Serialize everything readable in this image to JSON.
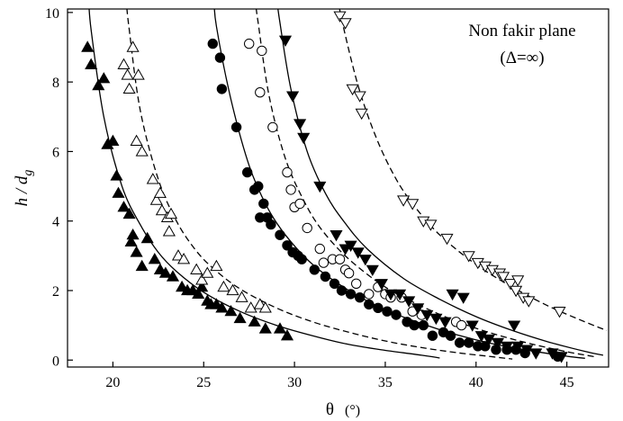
{
  "chart_data": {
    "type": "scatter",
    "title": "",
    "xlabel": "θ",
    "xlabel_unit": "(°)",
    "ylabel_main": "h / d",
    "ylabel_sub": "g",
    "xlim": [
      17.5,
      47.3
    ],
    "ylim": [
      -0.2,
      10.1
    ],
    "xticks": [
      20,
      25,
      30,
      35,
      40,
      45
    ],
    "yticks": [
      0,
      2,
      4,
      6,
      8,
      10
    ],
    "grid": false,
    "annotation": [
      "Non fakir plane",
      "(Δ=∞)"
    ],
    "series": [
      {
        "marker": "filled-triangle-up",
        "points": [
          [
            18.6,
            9.0
          ],
          [
            18.8,
            8.5
          ],
          [
            19.2,
            7.9
          ],
          [
            19.5,
            8.1
          ],
          [
            19.7,
            6.2
          ],
          [
            20.0,
            6.3
          ],
          [
            20.2,
            5.3
          ],
          [
            20.3,
            4.8
          ],
          [
            20.6,
            4.4
          ],
          [
            20.9,
            4.2
          ],
          [
            21.1,
            3.6
          ],
          [
            21.0,
            3.4
          ],
          [
            21.3,
            3.1
          ],
          [
            21.6,
            2.7
          ],
          [
            21.9,
            3.5
          ],
          [
            22.3,
            2.9
          ],
          [
            22.6,
            2.6
          ],
          [
            22.9,
            2.5
          ],
          [
            23.3,
            2.4
          ],
          [
            23.8,
            2.1
          ],
          [
            24.1,
            2.0
          ],
          [
            24.4,
            2.0
          ],
          [
            24.7,
            1.9
          ],
          [
            24.9,
            2.1
          ],
          [
            25.2,
            1.7
          ],
          [
            25.4,
            1.6
          ],
          [
            25.7,
            1.6
          ],
          [
            26.0,
            1.5
          ],
          [
            26.5,
            1.4
          ],
          [
            27.0,
            1.2
          ],
          [
            27.8,
            1.1
          ],
          [
            28.4,
            0.9
          ],
          [
            29.2,
            0.9
          ],
          [
            29.6,
            0.7
          ]
        ]
      },
      {
        "marker": "open-triangle-up",
        "points": [
          [
            20.6,
            8.5
          ],
          [
            20.8,
            8.2
          ],
          [
            20.9,
            7.8
          ],
          [
            21.1,
            9.0
          ],
          [
            21.4,
            8.2
          ],
          [
            21.3,
            6.3
          ],
          [
            21.6,
            6.0
          ],
          [
            22.2,
            5.2
          ],
          [
            22.4,
            4.6
          ],
          [
            22.6,
            4.8
          ],
          [
            22.7,
            4.3
          ],
          [
            23.0,
            4.1
          ],
          [
            23.2,
            4.2
          ],
          [
            23.1,
            3.7
          ],
          [
            23.6,
            3.0
          ],
          [
            23.9,
            2.9
          ],
          [
            24.6,
            2.6
          ],
          [
            24.9,
            2.3
          ],
          [
            25.2,
            2.5
          ],
          [
            25.7,
            2.7
          ],
          [
            26.1,
            2.1
          ],
          [
            26.6,
            2.0
          ],
          [
            27.1,
            1.8
          ],
          [
            27.6,
            1.5
          ],
          [
            28.1,
            1.6
          ],
          [
            28.4,
            1.5
          ]
        ]
      },
      {
        "marker": "filled-circle",
        "points": [
          [
            25.5,
            9.1
          ],
          [
            25.9,
            8.7
          ],
          [
            26.0,
            7.8
          ],
          [
            26.8,
            6.7
          ],
          [
            27.4,
            5.4
          ],
          [
            27.8,
            4.9
          ],
          [
            28.0,
            5.0
          ],
          [
            28.3,
            4.5
          ],
          [
            28.1,
            4.1
          ],
          [
            28.5,
            4.1
          ],
          [
            28.7,
            3.9
          ],
          [
            29.2,
            3.6
          ],
          [
            29.6,
            3.3
          ],
          [
            29.9,
            3.1
          ],
          [
            30.2,
            3.0
          ],
          [
            30.4,
            2.9
          ],
          [
            31.1,
            2.6
          ],
          [
            31.7,
            2.4
          ],
          [
            32.2,
            2.2
          ],
          [
            32.6,
            2.0
          ],
          [
            33.1,
            1.9
          ],
          [
            33.6,
            1.8
          ],
          [
            34.1,
            1.6
          ],
          [
            34.6,
            1.5
          ],
          [
            35.1,
            1.4
          ],
          [
            35.6,
            1.3
          ],
          [
            36.2,
            1.1
          ],
          [
            36.6,
            1.0
          ],
          [
            37.1,
            1.0
          ],
          [
            37.6,
            0.7
          ],
          [
            38.2,
            0.8
          ],
          [
            38.6,
            0.7
          ],
          [
            39.1,
            0.5
          ],
          [
            39.6,
            0.5
          ],
          [
            40.1,
            0.4
          ],
          [
            40.5,
            0.4
          ],
          [
            41.1,
            0.3
          ],
          [
            41.7,
            0.3
          ],
          [
            42.2,
            0.3
          ],
          [
            42.7,
            0.2
          ],
          [
            44.5,
            0.1
          ]
        ]
      },
      {
        "marker": "open-circle",
        "points": [
          [
            27.5,
            9.1
          ],
          [
            28.2,
            8.9
          ],
          [
            28.1,
            7.7
          ],
          [
            28.8,
            6.7
          ],
          [
            29.6,
            5.4
          ],
          [
            29.8,
            4.9
          ],
          [
            30.0,
            4.4
          ],
          [
            30.3,
            4.5
          ],
          [
            30.7,
            3.8
          ],
          [
            31.4,
            3.2
          ],
          [
            31.6,
            2.8
          ],
          [
            32.1,
            2.9
          ],
          [
            32.5,
            2.9
          ],
          [
            32.8,
            2.6
          ],
          [
            33.0,
            2.5
          ],
          [
            33.4,
            2.2
          ],
          [
            34.1,
            1.9
          ],
          [
            34.6,
            2.1
          ],
          [
            35.0,
            1.9
          ],
          [
            35.3,
            1.8
          ],
          [
            35.9,
            1.8
          ],
          [
            36.5,
            1.4
          ],
          [
            37.0,
            1.3
          ],
          [
            38.9,
            1.1
          ],
          [
            39.2,
            1.0
          ]
        ]
      },
      {
        "marker": "filled-triangle-down",
        "points": [
          [
            29.5,
            9.2
          ],
          [
            29.9,
            7.6
          ],
          [
            30.3,
            6.8
          ],
          [
            30.5,
            6.4
          ],
          [
            31.4,
            5.0
          ],
          [
            32.3,
            3.6
          ],
          [
            32.8,
            3.2
          ],
          [
            33.1,
            3.3
          ],
          [
            33.5,
            3.1
          ],
          [
            33.9,
            2.9
          ],
          [
            34.3,
            2.6
          ],
          [
            34.8,
            2.2
          ],
          [
            35.3,
            1.9
          ],
          [
            35.8,
            1.9
          ],
          [
            36.3,
            1.7
          ],
          [
            36.8,
            1.5
          ],
          [
            37.3,
            1.3
          ],
          [
            37.8,
            1.2
          ],
          [
            38.3,
            1.1
          ],
          [
            38.7,
            1.9
          ],
          [
            39.3,
            1.8
          ],
          [
            39.8,
            1.0
          ],
          [
            40.3,
            0.7
          ],
          [
            40.7,
            0.6
          ],
          [
            41.2,
            0.5
          ],
          [
            41.7,
            0.4
          ],
          [
            42.1,
            1.0
          ],
          [
            42.3,
            0.4
          ],
          [
            42.8,
            0.3
          ],
          [
            43.3,
            0.2
          ],
          [
            44.2,
            0.2
          ],
          [
            44.7,
            0.1
          ]
        ]
      },
      {
        "marker": "open-triangle-down",
        "points": [
          [
            32.5,
            9.9
          ],
          [
            32.8,
            9.7
          ],
          [
            33.2,
            7.8
          ],
          [
            33.6,
            7.6
          ],
          [
            33.7,
            7.1
          ],
          [
            36.0,
            4.6
          ],
          [
            36.5,
            4.5
          ],
          [
            37.1,
            4.0
          ],
          [
            37.5,
            3.9
          ],
          [
            38.4,
            3.5
          ],
          [
            39.6,
            3.0
          ],
          [
            40.1,
            2.8
          ],
          [
            40.5,
            2.7
          ],
          [
            40.9,
            2.6
          ],
          [
            41.3,
            2.5
          ],
          [
            41.5,
            2.4
          ],
          [
            41.9,
            2.2
          ],
          [
            42.3,
            2.3
          ],
          [
            42.2,
            2.0
          ],
          [
            42.6,
            1.8
          ],
          [
            42.9,
            1.7
          ],
          [
            44.6,
            1.4
          ]
        ]
      }
    ],
    "curves": [
      {
        "style": "solid",
        "x0": 18.5,
        "points": [
          [
            18.8,
            9.5
          ],
          [
            19.5,
            7.0
          ],
          [
            20.5,
            5.0
          ],
          [
            21.5,
            3.9
          ],
          [
            22.5,
            3.1
          ],
          [
            23.5,
            2.55
          ],
          [
            25,
            1.95
          ],
          [
            27,
            1.4
          ],
          [
            29,
            1.0
          ],
          [
            31,
            0.7
          ],
          [
            33,
            0.45
          ],
          [
            35,
            0.28
          ],
          [
            37,
            0.14
          ],
          [
            38,
            0.06
          ]
        ]
      },
      {
        "style": "dashed",
        "x0": 20.5,
        "points": [
          [
            20.9,
            9.5
          ],
          [
            21.5,
            7.2
          ],
          [
            22.5,
            5.2
          ],
          [
            23.5,
            4.0
          ],
          [
            24.5,
            3.2
          ],
          [
            25.5,
            2.65
          ],
          [
            27,
            2.05
          ],
          [
            29,
            1.5
          ],
          [
            31,
            1.1
          ],
          [
            33,
            0.8
          ],
          [
            35,
            0.55
          ],
          [
            37,
            0.36
          ],
          [
            39,
            0.21
          ],
          [
            41,
            0.09
          ],
          [
            42,
            0.03
          ]
        ]
      },
      {
        "style": "solid",
        "x0": 25.4,
        "points": [
          [
            25.7,
            9.6
          ],
          [
            26.5,
            7.5
          ],
          [
            27.5,
            5.6
          ],
          [
            28.5,
            4.4
          ],
          [
            29.5,
            3.6
          ],
          [
            31,
            2.75
          ],
          [
            33,
            2.0
          ],
          [
            35,
            1.45
          ],
          [
            37,
            1.05
          ],
          [
            39,
            0.72
          ],
          [
            41,
            0.46
          ],
          [
            43,
            0.27
          ],
          [
            45,
            0.11
          ],
          [
            46,
            0.05
          ]
        ]
      },
      {
        "style": "dashed",
        "x0": 27.6,
        "points": [
          [
            28.0,
            9.7
          ],
          [
            28.6,
            7.6
          ],
          [
            29.5,
            5.8
          ],
          [
            30.5,
            4.6
          ],
          [
            31.5,
            3.75
          ],
          [
            33,
            2.9
          ],
          [
            35,
            2.1
          ],
          [
            37,
            1.55
          ],
          [
            39,
            1.1
          ],
          [
            41,
            0.75
          ],
          [
            43,
            0.47
          ],
          [
            45,
            0.24
          ],
          [
            46.5,
            0.1
          ]
        ]
      },
      {
        "style": "solid",
        "x0": 28.8,
        "points": [
          [
            29.2,
            9.7
          ],
          [
            29.8,
            7.8
          ],
          [
            30.7,
            6.0
          ],
          [
            31.7,
            4.8
          ],
          [
            32.7,
            4.0
          ],
          [
            34,
            3.2
          ],
          [
            36,
            2.35
          ],
          [
            38,
            1.75
          ],
          [
            40,
            1.25
          ],
          [
            42,
            0.85
          ],
          [
            44,
            0.52
          ],
          [
            46,
            0.25
          ],
          [
            47,
            0.14
          ]
        ]
      },
      {
        "style": "dashed",
        "x0": 32.2,
        "points": [
          [
            32.6,
            9.8
          ],
          [
            33.5,
            7.9
          ],
          [
            34.5,
            6.4
          ],
          [
            35.5,
            5.3
          ],
          [
            36.5,
            4.5
          ],
          [
            38,
            3.6
          ],
          [
            40,
            2.75
          ],
          [
            42,
            2.1
          ],
          [
            44,
            1.55
          ],
          [
            46,
            1.1
          ],
          [
            47.2,
            0.85
          ]
        ]
      }
    ]
  }
}
